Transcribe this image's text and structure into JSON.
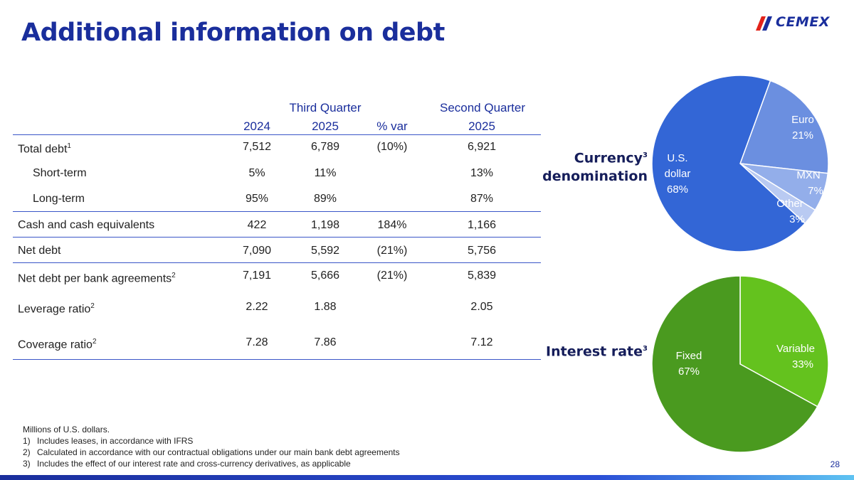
{
  "header": {
    "title": "Additional information on debt",
    "logo_text": "CEMEX",
    "brand_colors": {
      "blue": "#1a2e9c",
      "red": "#e2231a"
    }
  },
  "table": {
    "group_headers": {
      "third_quarter": "Third Quarter",
      "second_quarter": "Second Quarter"
    },
    "columns": [
      "2024",
      "2025",
      "% var",
      "2025"
    ],
    "rows": [
      {
        "label": "Total debt",
        "sup": "1",
        "v": [
          "7,512",
          "6,789",
          "(10%)",
          "6,921"
        ]
      },
      {
        "label": "Short-term",
        "sup": "",
        "v": [
          "5%",
          "11%",
          "",
          "13%"
        ]
      },
      {
        "label": "Long-term",
        "sup": "",
        "v": [
          "95%",
          "89%",
          "",
          "87%"
        ]
      },
      {
        "label": "Cash and cash equivalents",
        "sup": "",
        "v": [
          "422",
          "1,198",
          "184%",
          "1,166"
        ]
      },
      {
        "label": "Net debt",
        "sup": "",
        "v": [
          "7,090",
          "5,592",
          "(21%)",
          "5,756"
        ]
      },
      {
        "label": "Net debt per bank agreements",
        "sup": "2",
        "v": [
          "7,191",
          "5,666",
          "(21%)",
          "5,839"
        ]
      },
      {
        "label": "Leverage ratio",
        "sup": "2",
        "v": [
          "2.22",
          "1.88",
          "",
          "2.05"
        ]
      },
      {
        "label": "Coverage ratio",
        "sup": "2",
        "v": [
          "7.28",
          "7.86",
          "",
          "7.12"
        ]
      }
    ]
  },
  "currency_pie": {
    "label_line1": "Currency",
    "label_sup": "3",
    "label_line2": "denomination",
    "slices": [
      {
        "name_lines": [
          "U.S.",
          "dollar"
        ],
        "pct_label": "68%",
        "value": 68,
        "color": "#3366d6"
      },
      {
        "name_lines": [
          "Euro"
        ],
        "pct_label": "21%",
        "value": 21,
        "color": "#6b8fe0"
      },
      {
        "name_lines": [
          "MXN"
        ],
        "pct_label": "7%",
        "value": 7,
        "color": "#93aeea"
      },
      {
        "name_lines": [
          "Other"
        ],
        "pct_label": "3%",
        "value": 3,
        "color": "#b9caf2"
      }
    ]
  },
  "interest_pie": {
    "label": "Interest rate",
    "label_sup": "3",
    "slices": [
      {
        "name_lines": [
          "Fixed"
        ],
        "pct_label": "67%",
        "value": 67,
        "color": "#4a9a1f"
      },
      {
        "name_lines": [
          "Variable"
        ],
        "pct_label": "33%",
        "value": 33,
        "color": "#64c21e"
      }
    ]
  },
  "footnotes": {
    "intro": "Millions of U.S. dollars.",
    "items": [
      {
        "num": "1)",
        "text": "Includes leases, in accordance with IFRS"
      },
      {
        "num": "2)",
        "text": "Calculated in accordance with our contractual obligations under our main bank debt agreements"
      },
      {
        "num": "3)",
        "text": "Includes the effect of our interest rate and cross-currency derivatives, as applicable"
      }
    ]
  },
  "page_number": "28"
}
